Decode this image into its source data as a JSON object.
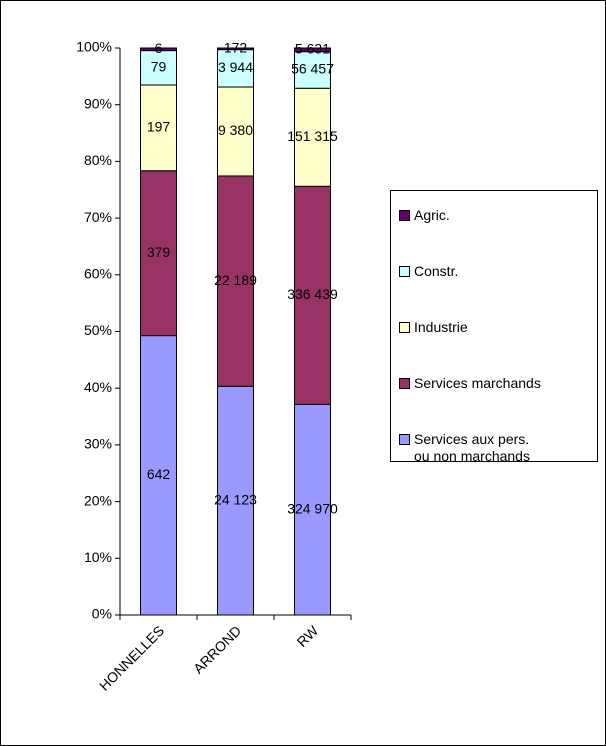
{
  "chart_data": {
    "type": "bar",
    "stacking": "percent",
    "categories": [
      "HONNELLES",
      "ARROND",
      "RW"
    ],
    "series": [
      {
        "name": "Services aux pers. ou non marchands",
        "color": "#9999ff",
        "values": [
          642,
          24123,
          324970
        ],
        "value_labels": [
          "642",
          "24 123",
          "324 970"
        ]
      },
      {
        "name": "Services marchands",
        "color": "#993366",
        "values": [
          379,
          22189,
          336439
        ],
        "value_labels": [
          "379",
          "22 189",
          "336 439"
        ]
      },
      {
        "name": "Industrie",
        "color": "#ffffcc",
        "values": [
          197,
          9380,
          151315
        ],
        "value_labels": [
          "197",
          "9 380",
          "151 315"
        ]
      },
      {
        "name": "Constr.",
        "color": "#ccffff",
        "values": [
          79,
          3944,
          56457
        ],
        "value_labels": [
          "79",
          "3 944",
          "56 457"
        ]
      },
      {
        "name": "Agric.",
        "color": "#660066",
        "values": [
          6,
          172,
          5631
        ],
        "value_labels": [
          "6",
          "172",
          "5 631"
        ]
      }
    ],
    "ylim": [
      0,
      100
    ],
    "yticks": [
      {
        "value": 0,
        "label": "0%"
      },
      {
        "value": 10,
        "label": "10%"
      },
      {
        "value": 20,
        "label": "20%"
      },
      {
        "value": 30,
        "label": "30%"
      },
      {
        "value": 40,
        "label": "40%"
      },
      {
        "value": 50,
        "label": "50%"
      },
      {
        "value": 60,
        "label": "60%"
      },
      {
        "value": 70,
        "label": "70%"
      },
      {
        "value": 80,
        "label": "80%"
      },
      {
        "value": 90,
        "label": "90%"
      },
      {
        "value": 100,
        "label": "100%"
      }
    ],
    "legend": "right"
  }
}
